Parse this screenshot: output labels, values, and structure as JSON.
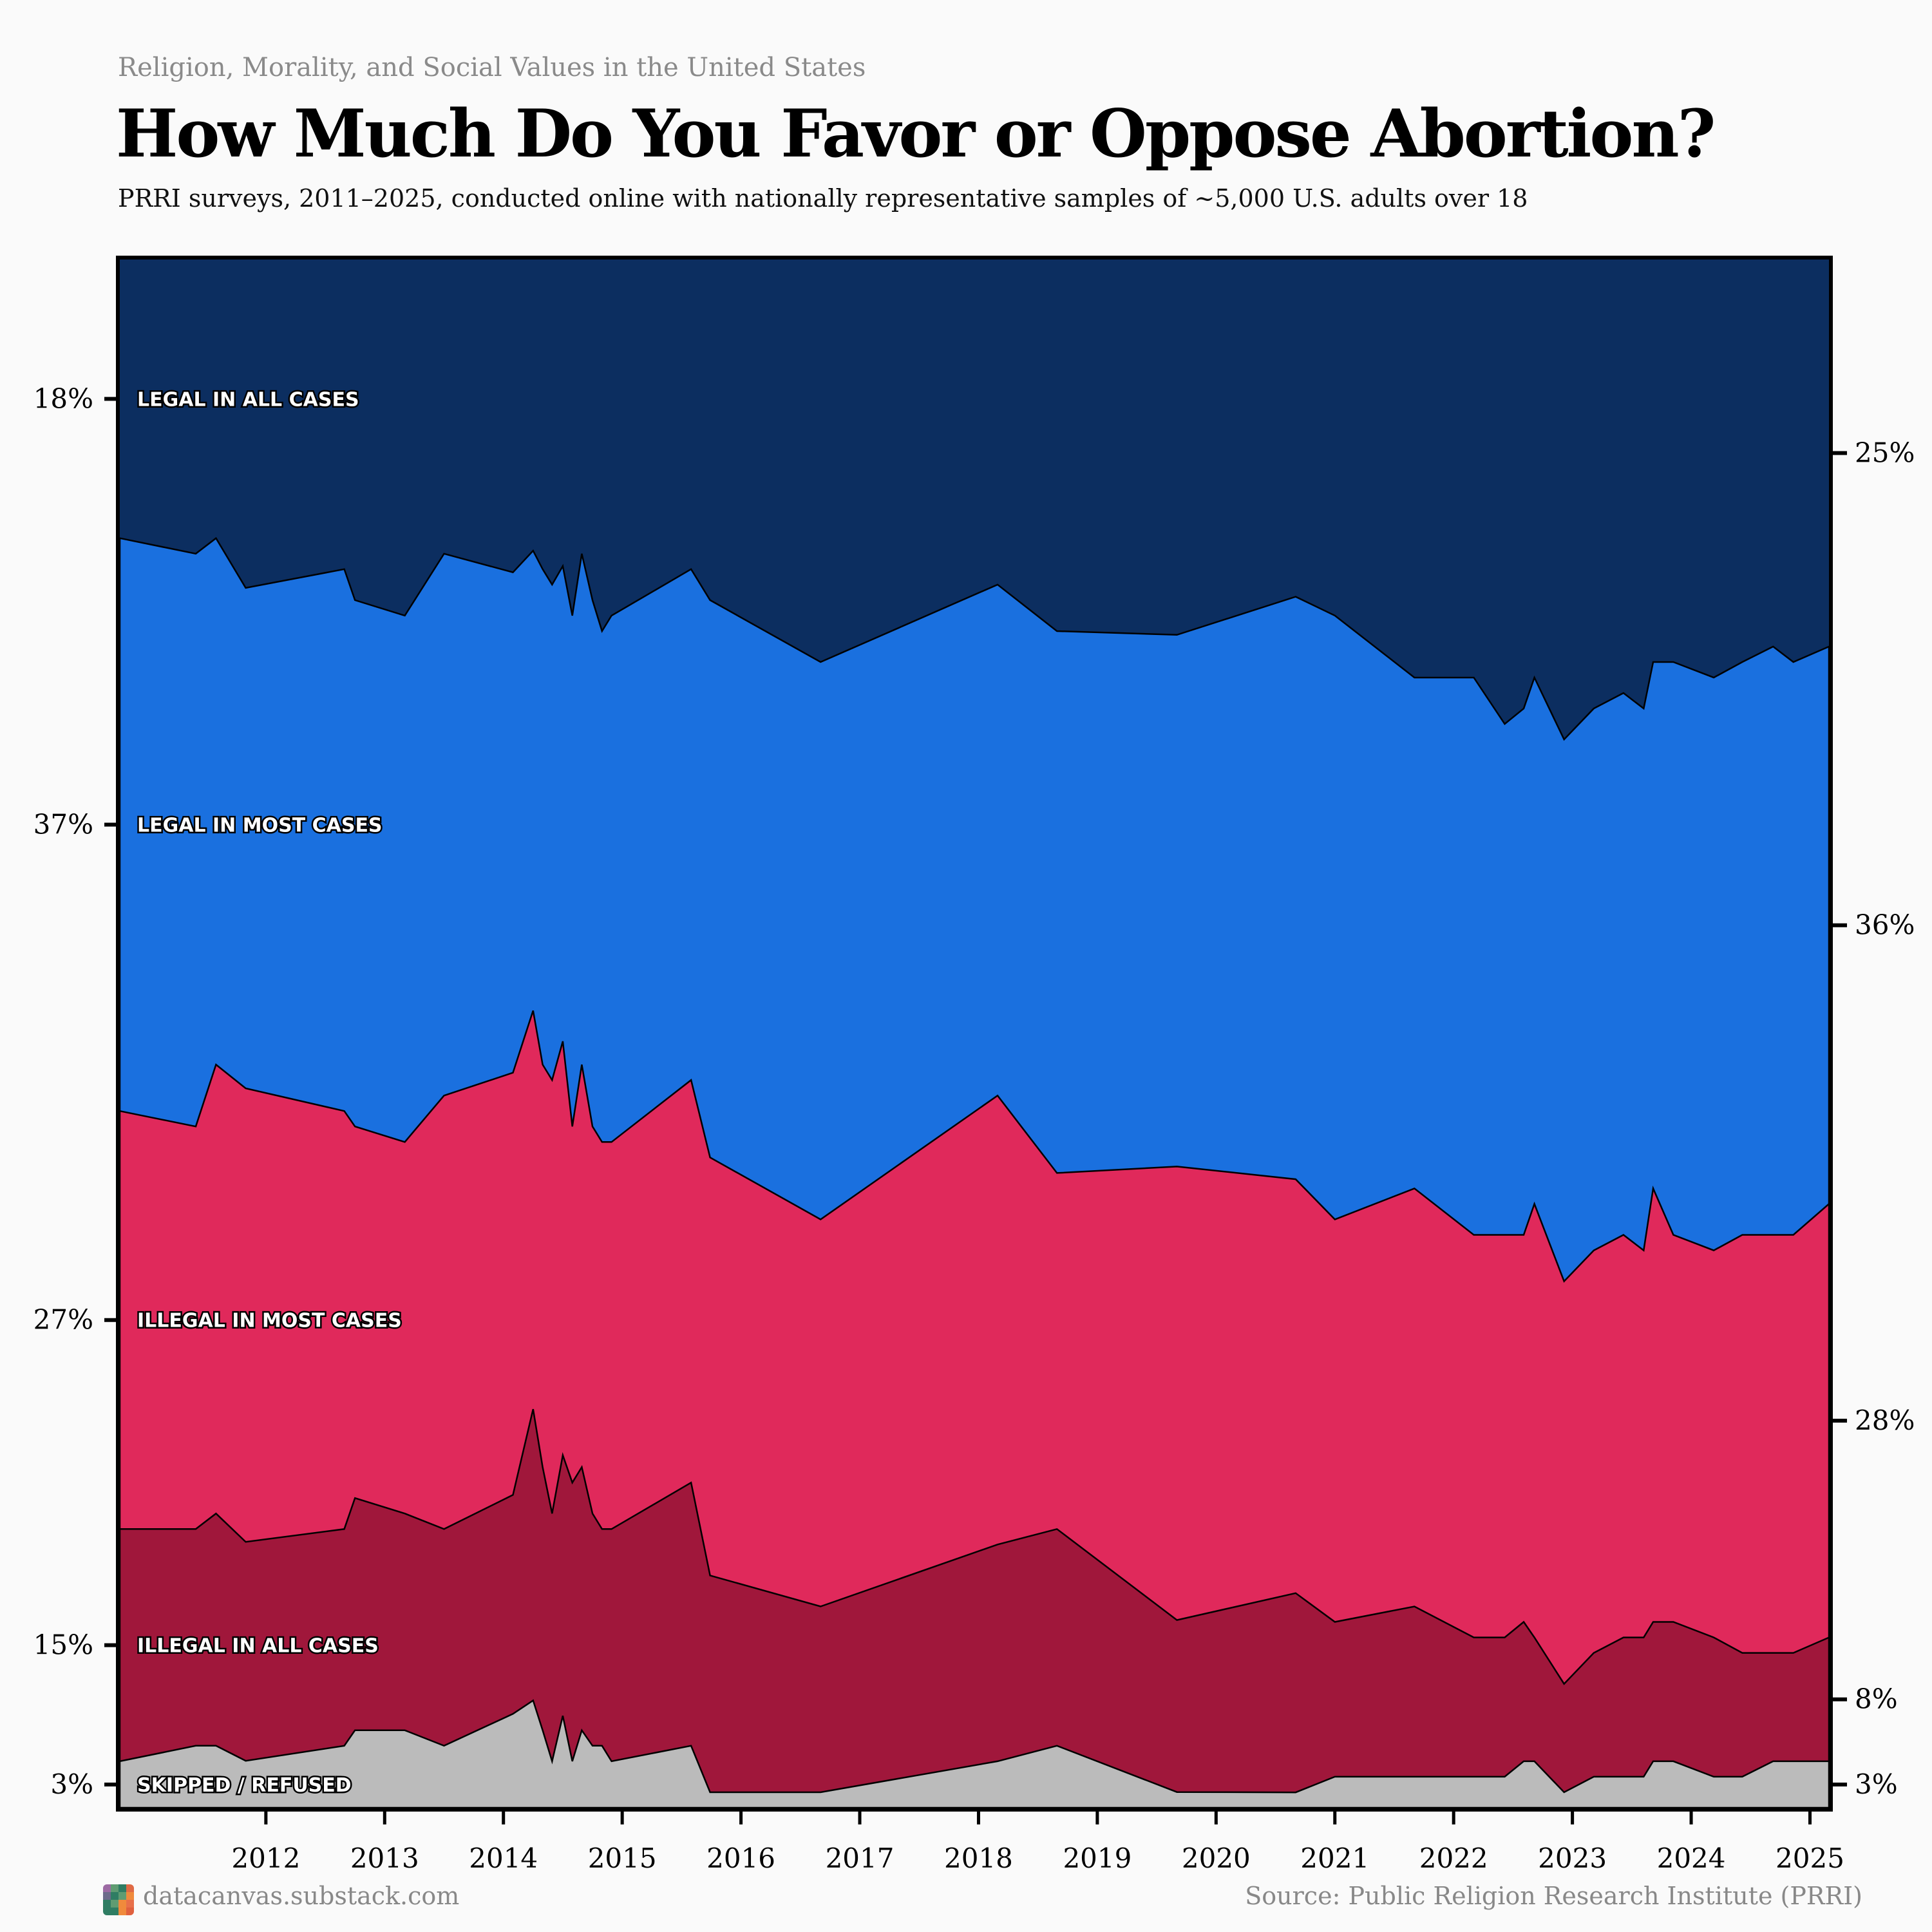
{
  "header": {
    "kicker": "Religion, Morality, and Social Values in the United States",
    "title": "How Much Do You Favor or Oppose Abortion?",
    "description": "PRRI surveys, 2011–2025, conducted online with nationally representative samples of ~5,000 U.S. adults over 18"
  },
  "footer": {
    "site": "datacanvas.substack.com",
    "source": "Source: Public Religion Research Institute (PRRI)",
    "logo_colors": [
      "#9c6aa3",
      "#5f9c72",
      "#2f7d63",
      "#e06a45",
      "#6c6b8a",
      "#2f7d63",
      "#5f9c72",
      "#f08a3c",
      "#2f7d63",
      "#5f9c72",
      "#f08a3c",
      "#e8704a",
      "#2f7d63",
      "#2f7d63",
      "#f08a3c",
      "#e0603e"
    ]
  },
  "chart_data": {
    "type": "area",
    "stacked": true,
    "normalized": true,
    "title": "How Much Do You Favor or Oppose Abortion?",
    "xlabel": "",
    "ylabel": "",
    "xlim": [
      2010.77,
      2025.16
    ],
    "ylim": [
      0,
      100
    ],
    "x_ticks": [
      2012,
      2013,
      2014,
      2015,
      2016,
      2017,
      2018,
      2019,
      2020,
      2021,
      2022,
      2023,
      2024,
      2025
    ],
    "x": [
      2010.77,
      2011.41,
      2011.58,
      2011.83,
      2012.66,
      2012.75,
      2013.17,
      2013.5,
      2014.08,
      2014.25,
      2014.33,
      2014.41,
      2014.5,
      2014.58,
      2014.66,
      2014.75,
      2014.83,
      2014.91,
      2015.58,
      2015.74,
      2016.67,
      2018.16,
      2018.66,
      2019.67,
      2020.67,
      2021.0,
      2021.67,
      2022.17,
      2022.43,
      2022.59,
      2022.68,
      2022.93,
      2023.18,
      2023.43,
      2023.6,
      2023.68,
      2023.85,
      2024.19,
      2024.43,
      2024.69,
      2024.86,
      2025.16
    ],
    "series": [
      {
        "name": "SKIPPED / REFUSED",
        "color": "#bbbbbb",
        "values": [
          3,
          4,
          4,
          3,
          4,
          5,
          5,
          4,
          6,
          7,
          5,
          3,
          6,
          3,
          5,
          4,
          4,
          3,
          4,
          1,
          1,
          3,
          4,
          1,
          1,
          2,
          2,
          2,
          2,
          3,
          3,
          1,
          2,
          2,
          2,
          3,
          3,
          2,
          2,
          3,
          3,
          3
        ]
      },
      {
        "name": "ILLEGAL IN ALL CASES",
        "color": "#a0173b",
        "values": [
          15,
          14,
          15,
          14,
          14,
          15,
          14,
          14,
          14,
          19,
          17,
          16,
          17,
          18,
          17,
          15,
          14,
          15,
          17,
          14,
          12,
          14,
          14,
          11,
          13,
          10,
          11,
          9,
          9,
          9,
          8,
          7,
          8,
          9,
          9,
          9,
          9,
          9,
          8,
          7,
          7,
          8
        ]
      },
      {
        "name": "ILLEGAL IN MOST CASES",
        "color": "#e0295b",
        "values": [
          27,
          26,
          29,
          29,
          27,
          24,
          24,
          28,
          27,
          26,
          26,
          28,
          27,
          23,
          26,
          25,
          25,
          25,
          26,
          27,
          25,
          29,
          23,
          29,
          27,
          26,
          27,
          26,
          26,
          25,
          28,
          26,
          26,
          26,
          25,
          28,
          25,
          25,
          27,
          27,
          27,
          28
        ]
      },
      {
        "name": "LEGAL IN MOST CASES",
        "color": "#1a70df",
        "values": [
          37,
          37,
          34,
          32,
          35,
          34,
          34,
          35,
          32,
          30,
          32,
          32,
          31,
          33,
          33,
          34,
          33,
          34,
          33,
          36,
          36,
          33,
          35,
          34,
          38,
          39,
          33,
          36,
          33,
          34,
          34,
          35,
          35,
          35,
          35,
          34,
          37,
          37,
          37,
          38,
          37,
          36
        ]
      },
      {
        "name": "LEGAL IN ALL CASES",
        "color": "#0c2e60",
        "values": [
          18,
          19,
          18,
          21,
          20,
          22,
          23,
          19,
          20,
          19,
          20,
          21,
          20,
          23,
          19,
          22,
          24,
          23,
          20,
          22,
          26,
          21,
          24,
          24,
          22,
          23,
          27,
          27,
          30,
          29,
          27,
          31,
          29,
          28,
          29,
          26,
          26,
          27,
          26,
          25,
          26,
          25
        ]
      }
    ],
    "left_axis_labels": [
      "3%",
      "15%",
      "27%",
      "37%",
      "18%"
    ],
    "right_axis_labels": [
      "3%",
      "8%",
      "28%",
      "36%",
      "25%"
    ],
    "legend": "inline-left",
    "grid": false
  }
}
